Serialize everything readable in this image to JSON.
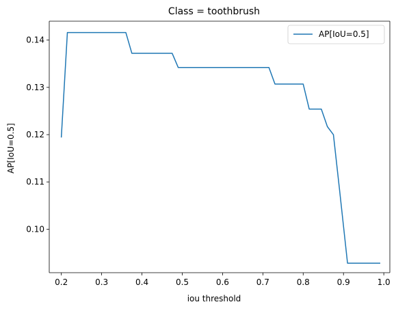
{
  "chart_data": {
    "type": "line",
    "title": "Class = toothbrush",
    "xlabel": "iou threshold",
    "ylabel": "AP[IoU=0.5]",
    "xlim": [
      0.17,
      1.015
    ],
    "ylim": [
      0.0908,
      0.144
    ],
    "xticks": [
      0.2,
      0.3,
      0.4,
      0.5,
      0.6,
      0.7,
      0.8,
      0.9,
      1.0
    ],
    "xtick_labels": [
      "0.2",
      "0.3",
      "0.4",
      "0.5",
      "0.6",
      "0.7",
      "0.8",
      "0.9",
      "1.0"
    ],
    "yticks": [
      0.1,
      0.11,
      0.12,
      0.13,
      0.14
    ],
    "ytick_labels": [
      "0.10",
      "0.11",
      "0.12",
      "0.13",
      "0.14"
    ],
    "grid": false,
    "legend_position": "top-right",
    "series": [
      {
        "name": "AP[IoU=0.5]",
        "color": "#1f77b4",
        "x": [
          0.2,
          0.215,
          0.23,
          0.245,
          0.26,
          0.275,
          0.29,
          0.305,
          0.32,
          0.335,
          0.35,
          0.36,
          0.375,
          0.39,
          0.405,
          0.42,
          0.435,
          0.45,
          0.465,
          0.475,
          0.49,
          0.505,
          0.52,
          0.535,
          0.55,
          0.565,
          0.58,
          0.595,
          0.61,
          0.625,
          0.64,
          0.655,
          0.67,
          0.685,
          0.7,
          0.715,
          0.73,
          0.745,
          0.76,
          0.775,
          0.79,
          0.8,
          0.815,
          0.83,
          0.845,
          0.86,
          0.875,
          0.89,
          0.91,
          0.925,
          0.94,
          0.955,
          0.97,
          0.99
        ],
        "y": [
          0.1195,
          0.1416,
          0.1416,
          0.1416,
          0.1416,
          0.1416,
          0.1416,
          0.1416,
          0.1416,
          0.1416,
          0.1416,
          0.1416,
          0.1372,
          0.1372,
          0.1372,
          0.1372,
          0.1372,
          0.1372,
          0.1372,
          0.1372,
          0.1342,
          0.1342,
          0.1342,
          0.1342,
          0.1342,
          0.1342,
          0.1342,
          0.1342,
          0.1342,
          0.1342,
          0.1342,
          0.1342,
          0.1342,
          0.1342,
          0.1342,
          0.1342,
          0.1307,
          0.1307,
          0.1307,
          0.1307,
          0.1307,
          0.1307,
          0.1254,
          0.1254,
          0.1254,
          0.1217,
          0.12,
          0.1085,
          0.0928,
          0.0928,
          0.0928,
          0.0928,
          0.0928,
          0.0928
        ]
      }
    ]
  }
}
